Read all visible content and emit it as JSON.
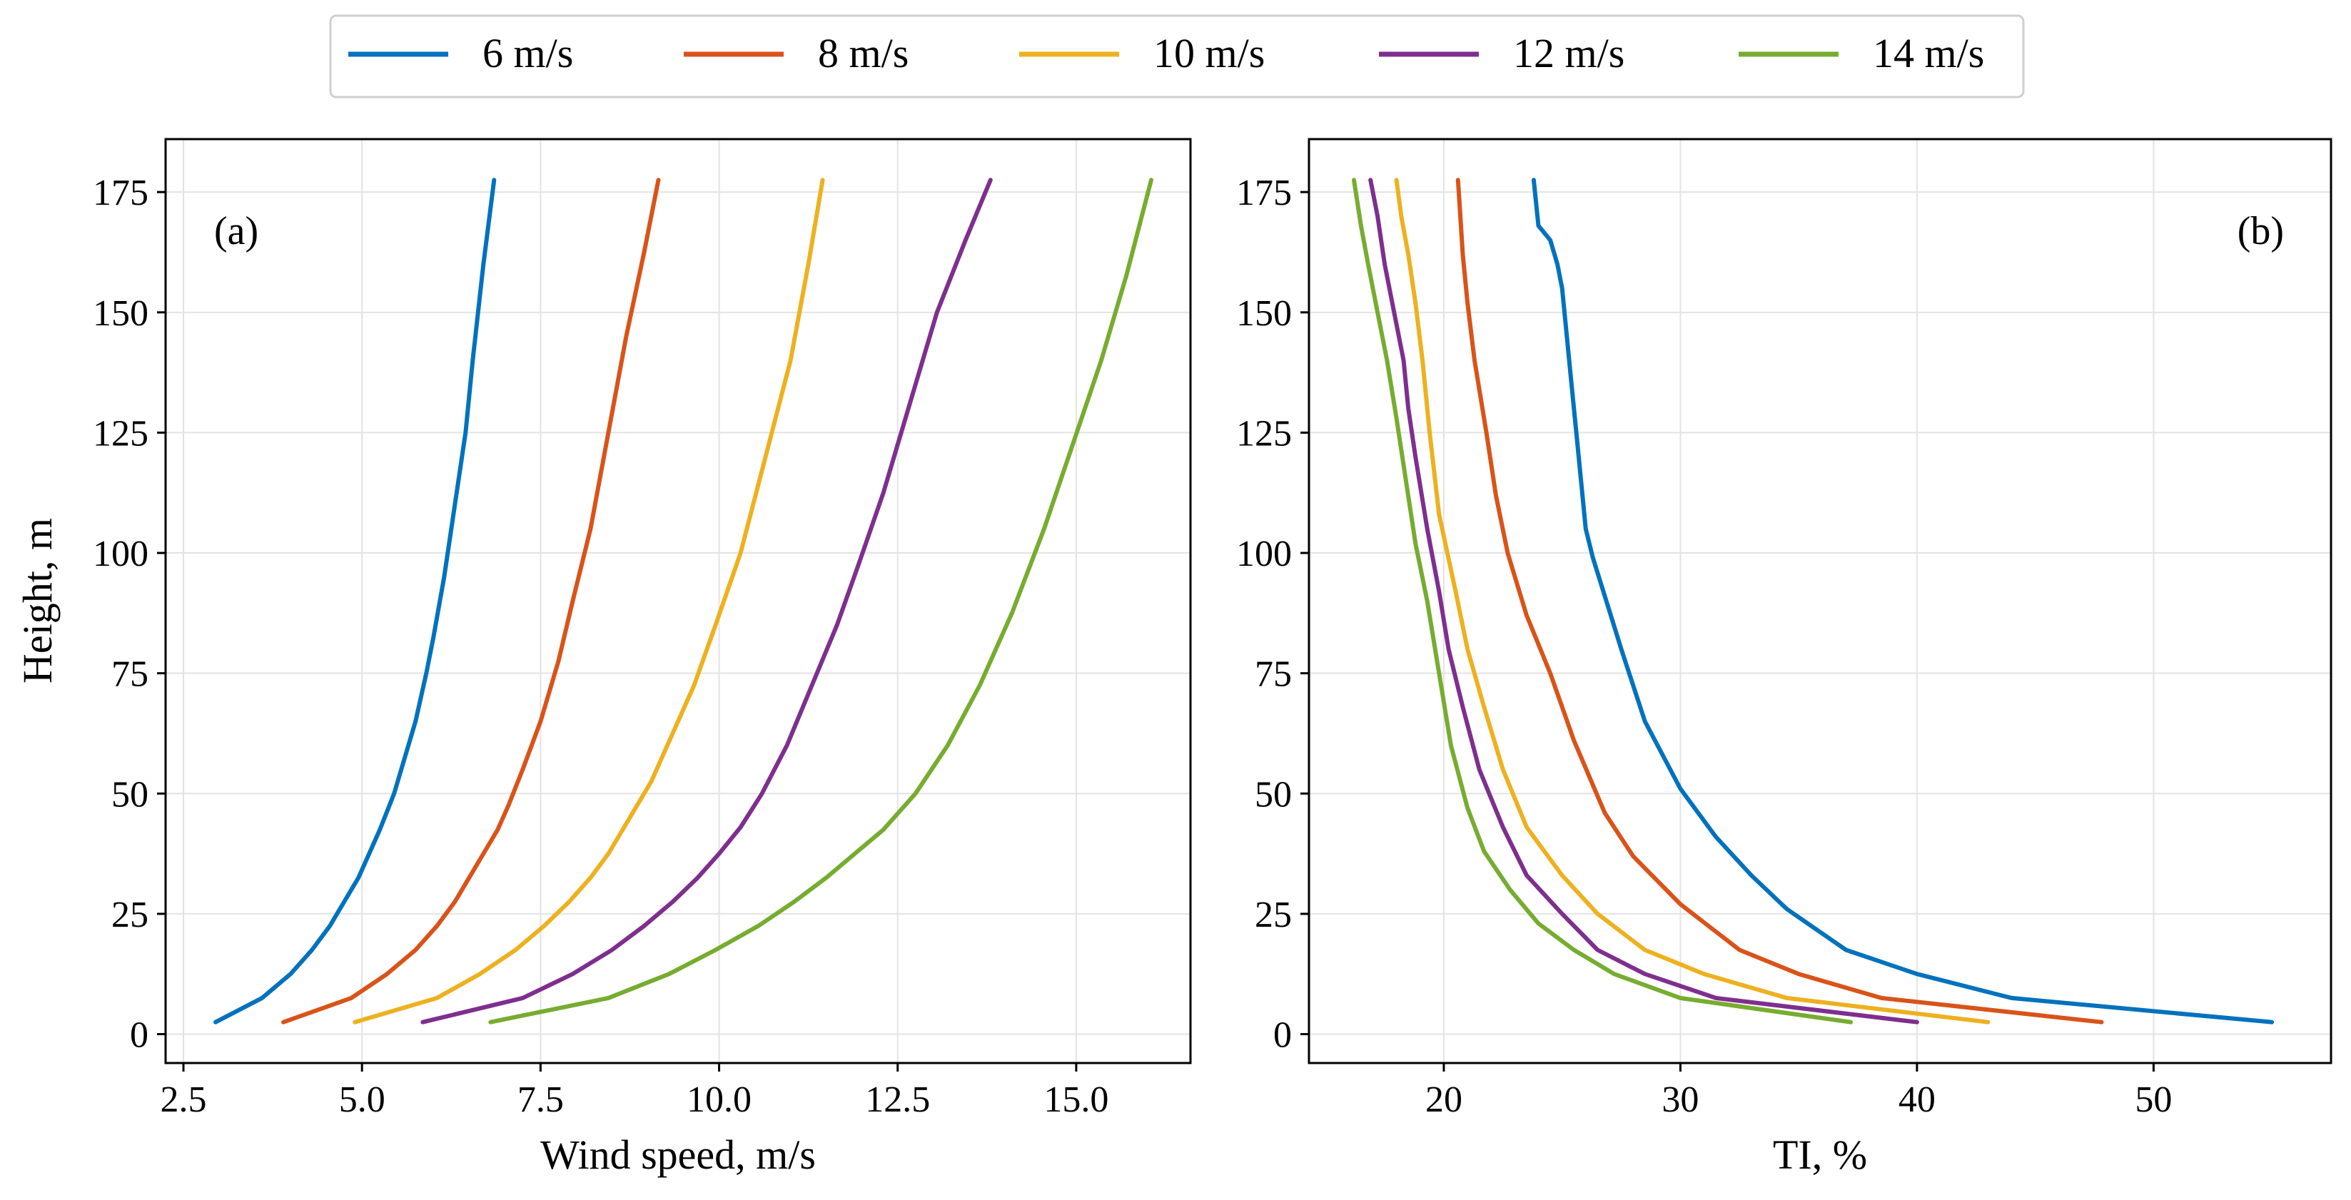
{
  "legend": {
    "entries": [
      {
        "label": "6 m/s",
        "color": "#0072BD"
      },
      {
        "label": "8 m/s",
        "color": "#D95319"
      },
      {
        "label": "10 m/s",
        "color": "#EDB120"
      },
      {
        "label": "12 m/s",
        "color": "#7E2F8E"
      },
      {
        "label": "14 m/s",
        "color": "#77AC30"
      }
    ]
  },
  "chart_data": [
    {
      "type": "line",
      "panel_label": "(a)",
      "xlabel": "Wind speed, m/s",
      "ylabel": "Height, m",
      "xlim": [
        2.25,
        16.6
      ],
      "ylim": [
        -6,
        186
      ],
      "xticks": [
        2.5,
        5.0,
        7.5,
        10.0,
        12.5,
        15.0
      ],
      "xtick_labels": [
        "2.5",
        "5.0",
        "7.5",
        "10.0",
        "12.5",
        "15.0"
      ],
      "yticks": [
        0,
        25,
        50,
        75,
        100,
        125,
        150,
        175
      ],
      "ytick_labels": [
        "0",
        "25",
        "50",
        "75",
        "100",
        "125",
        "150",
        "175"
      ],
      "grid": true,
      "series": [
        {
          "name": "6 m/s",
          "color": "#0072BD",
          "x": [
            2.95,
            3.6,
            4.0,
            4.3,
            4.55,
            4.75,
            4.95,
            5.1,
            5.25,
            5.45,
            5.6,
            5.75,
            5.9,
            6.0,
            6.15,
            6.3,
            6.45,
            6.55,
            6.7,
            6.85
          ],
          "y": [
            2.5,
            7.5,
            12.5,
            17.5,
            22.5,
            27.5,
            32.5,
            37.5,
            42.5,
            50,
            57.5,
            65,
            75,
            82.5,
            95,
            110,
            125,
            140,
            160,
            177.5
          ]
        },
        {
          "name": "8 m/s",
          "color": "#D95319",
          "x": [
            3.9,
            4.85,
            5.35,
            5.75,
            6.05,
            6.3,
            6.5,
            6.7,
            6.9,
            7.05,
            7.25,
            7.5,
            7.75,
            7.95,
            8.2,
            8.45,
            8.7,
            8.95,
            9.15
          ],
          "y": [
            2.5,
            7.5,
            12.5,
            17.5,
            22.5,
            27.5,
            32.5,
            37.5,
            42.5,
            47.5,
            55,
            65,
            77.5,
            90,
            105,
            125,
            145,
            162.5,
            177.5
          ]
        },
        {
          "name": "10 m/s",
          "color": "#EDB120",
          "x": [
            4.9,
            6.05,
            6.65,
            7.15,
            7.55,
            7.9,
            8.2,
            8.45,
            8.75,
            9.05,
            9.35,
            9.65,
            9.95,
            10.3,
            10.65,
            11.0,
            11.25,
            11.45
          ],
          "y": [
            2.5,
            7.5,
            12.5,
            17.5,
            22.5,
            27.5,
            32.5,
            37.5,
            45,
            52.5,
            62.5,
            72.5,
            85,
            100,
            120,
            140,
            160,
            177.5
          ]
        },
        {
          "name": "12 m/s",
          "color": "#7E2F8E",
          "x": [
            5.85,
            7.25,
            7.95,
            8.5,
            8.95,
            9.35,
            9.7,
            10.0,
            10.3,
            10.6,
            10.95,
            11.3,
            11.65,
            11.95,
            12.3,
            12.65,
            13.05,
            13.45,
            13.8
          ],
          "y": [
            2.5,
            7.5,
            12.5,
            17.5,
            22.5,
            27.5,
            32.5,
            37.5,
            43,
            50,
            60,
            72.5,
            85,
            97.5,
            112.5,
            130,
            150,
            165,
            177.5
          ]
        },
        {
          "name": "14 m/s",
          "color": "#77AC30",
          "x": [
            6.8,
            8.45,
            9.3,
            9.95,
            10.55,
            11.05,
            11.5,
            11.9,
            12.3,
            12.75,
            13.2,
            13.65,
            14.1,
            14.55,
            14.95,
            15.35,
            15.7,
            16.05
          ],
          "y": [
            2.5,
            7.5,
            12.5,
            17.5,
            22.5,
            27.5,
            32.5,
            37.5,
            42.5,
            50,
            60,
            72.5,
            87.5,
            105,
            122.5,
            140,
            157.5,
            177.5
          ]
        }
      ]
    },
    {
      "type": "line",
      "panel_label": "(b)",
      "xlabel": "TI, %",
      "ylabel": "",
      "xlim": [
        14.3,
        57.5
      ],
      "ylim": [
        -6,
        186
      ],
      "xticks": [
        20,
        30,
        40,
        50
      ],
      "xtick_labels": [
        "20",
        "30",
        "40",
        "50"
      ],
      "yticks": [
        0,
        25,
        50,
        75,
        100,
        125,
        150,
        175
      ],
      "ytick_labels": [
        "0",
        "25",
        "50",
        "75",
        "100",
        "125",
        "150",
        "175"
      ],
      "grid": true,
      "series": [
        {
          "name": "6 m/s",
          "color": "#0072BD",
          "x": [
            55.0,
            44.0,
            40.0,
            37.0,
            34.5,
            33.0,
            31.5,
            30.0,
            28.5,
            27.5,
            26.3,
            26.0,
            25.8,
            25.6,
            25.4,
            25.2,
            25.0,
            24.8,
            24.5,
            24.0,
            23.8
          ],
          "y": [
            2.5,
            7.5,
            12.5,
            17.5,
            26,
            33,
            41,
            51,
            65,
            80,
            99,
            105,
            115,
            125,
            135,
            145,
            155,
            160,
            165,
            168,
            177.5
          ]
        },
        {
          "name": "8 m/s",
          "color": "#D95319",
          "x": [
            47.8,
            38.5,
            35.0,
            32.5,
            30.0,
            28.0,
            26.8,
            25.5,
            24.5,
            23.5,
            22.7,
            22.2,
            21.8,
            21.3,
            21.0,
            20.8,
            20.7,
            20.6
          ],
          "y": [
            2.5,
            7.5,
            12.5,
            17.5,
            27,
            37,
            46,
            61,
            75,
            87,
            100,
            112,
            125,
            140,
            152,
            162,
            170,
            177.5
          ]
        },
        {
          "name": "10 m/s",
          "color": "#EDB120",
          "x": [
            43.0,
            34.5,
            31.0,
            28.5,
            26.5,
            25.0,
            23.5,
            22.5,
            21.7,
            21.0,
            20.5,
            19.8,
            19.4,
            19.1,
            18.8,
            18.5,
            18.2,
            18.0
          ],
          "y": [
            2.5,
            7.5,
            12.5,
            17.5,
            25,
            33,
            43,
            55,
            68,
            80,
            92,
            108,
            125,
            140,
            152,
            162,
            170,
            177.5
          ]
        },
        {
          "name": "12 m/s",
          "color": "#7E2F8E",
          "x": [
            40.0,
            31.5,
            28.5,
            26.5,
            25.0,
            23.5,
            22.5,
            21.5,
            20.8,
            20.2,
            19.8,
            19.3,
            18.8,
            18.5,
            18.3,
            17.9,
            17.5,
            17.2,
            16.9
          ],
          "y": [
            2.5,
            7.5,
            12.5,
            17.5,
            25,
            33,
            43,
            55,
            68,
            80,
            92,
            105,
            120,
            130,
            140,
            150,
            160,
            170,
            177.5
          ]
        },
        {
          "name": "14 m/s",
          "color": "#77AC30",
          "x": [
            37.2,
            30.0,
            27.2,
            25.5,
            24.0,
            22.8,
            21.7,
            21.0,
            20.3,
            19.8,
            19.3,
            18.8,
            18.4,
            18.0,
            17.6,
            17.2,
            16.8,
            16.5,
            16.2
          ],
          "y": [
            2.5,
            7.5,
            12.5,
            17.5,
            23,
            30,
            38,
            47,
            60,
            75,
            90,
            102,
            115,
            128,
            140,
            150,
            160,
            168,
            177.5
          ]
        }
      ]
    }
  ]
}
